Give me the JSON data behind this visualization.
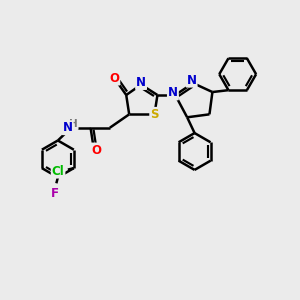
{
  "bg_color": "#ebebeb",
  "bond_color": "#000000",
  "bond_width": 1.8,
  "atom_colors": {
    "N": "#0000cd",
    "O": "#ff0000",
    "S": "#ccaa00",
    "Cl": "#00bb00",
    "F": "#aa00aa",
    "H": "#777777",
    "C": "#000000"
  },
  "scale": 10
}
